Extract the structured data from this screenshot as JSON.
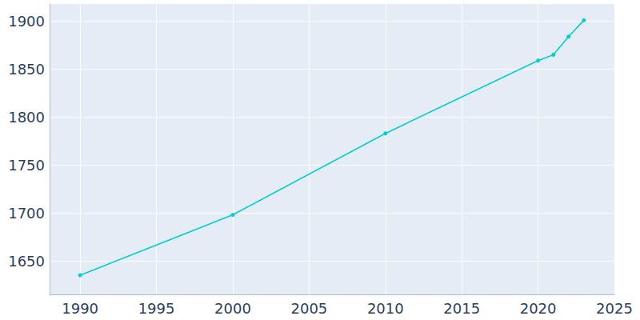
{
  "chart_data": {
    "type": "line",
    "x": [
      1990,
      2000,
      2010,
      2020,
      2021,
      2022,
      2023
    ],
    "values": [
      1635,
      1698,
      1783,
      1859,
      1865,
      1884,
      1901
    ],
    "color": "#00ced1",
    "marker": "circle",
    "xlim": [
      1988,
      2025
    ],
    "xticks": [
      1990,
      1995,
      2000,
      2005,
      2010,
      2015,
      2020,
      2025
    ],
    "ylim": [
      1615,
      1918
    ],
    "yticks": [
      1650,
      1700,
      1750,
      1800,
      1850,
      1900
    ],
    "grid": true
  }
}
